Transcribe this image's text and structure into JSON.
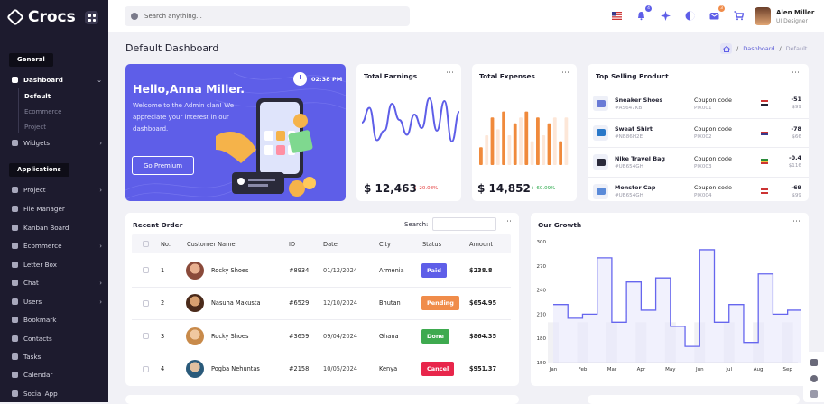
{
  "app": {
    "name": "Crocs"
  },
  "sidebar": {
    "general_label": "General",
    "applications_label": "Applications",
    "dashboard": "Dashboard",
    "dashboard_subs": [
      "Default",
      "Ecommerce",
      "Project"
    ],
    "widgets": "Widgets",
    "apps": [
      "Project",
      "File Manager",
      "Kanban Board",
      "Ecommerce",
      "Letter Box",
      "Chat",
      "Users",
      "Bookmark",
      "Contacts",
      "Tasks",
      "Calendar",
      "Social App"
    ]
  },
  "topbar": {
    "search_placeholder": "Search anything...",
    "notifications_count": "4",
    "cart_badge": "3",
    "user_name": "Alen Miller",
    "user_role": "UI Designer",
    "accent": "#5e5ee8"
  },
  "page": {
    "title": "Default Dashboard",
    "breadcrumb": [
      "Dashboard",
      "Default"
    ]
  },
  "hello": {
    "title": "Hello,Anna Miller.",
    "message": "Welcome to the Admin clan! We appreciate your interest in our dashboard.",
    "button": "Go Premium",
    "time": "02:38 PM"
  },
  "earnings": {
    "title": "Total Earnings",
    "amount": "$ 12,463",
    "delta": "+ 20.08%",
    "delta_color": "#e33b3b",
    "sparkline": [
      44,
      55,
      31,
      38,
      58,
      46,
      35,
      50,
      40,
      62,
      38,
      60,
      30,
      52
    ]
  },
  "expenses": {
    "title": "Total Expenses",
    "amount": "$ 14,852",
    "delta": "+ 60.09%",
    "delta_color": "#2aa84a",
    "bars": [
      3,
      5,
      8,
      6,
      9,
      5,
      7,
      8,
      9,
      4,
      8,
      5,
      7,
      8,
      4,
      8
    ]
  },
  "top_products": {
    "title": "Top Selling Product",
    "coupon_label": "Coupon code",
    "items": [
      {
        "name": "Sneaker Shoes",
        "sku": "#AS647KB",
        "coupon": "PIX001",
        "price": "-51",
        "was": "$99"
      },
      {
        "name": "Sweat Shirt",
        "sku": "#NB86H2E",
        "coupon": "PIX002",
        "price": "-78",
        "was": "$66"
      },
      {
        "name": "Nike Travel Bag",
        "sku": "#UB654GH",
        "coupon": "PIX003",
        "price": "-0.4",
        "was": "$116"
      },
      {
        "name": "Monster Cap",
        "sku": "#UB654GH",
        "coupon": "PIX004",
        "price": "-69",
        "was": "$99"
      }
    ]
  },
  "recent_order": {
    "title": "Recent Order",
    "search_label": "Search:",
    "columns": [
      "No.",
      "Customer Name",
      "ID",
      "Date",
      "City",
      "Status",
      "Amount"
    ],
    "rows": [
      {
        "no": "1",
        "name": "Rocky Shoes",
        "id": "#8934",
        "date": "01/12/2024",
        "city": "Armenia",
        "status": "Paid",
        "status_color": "#5e5ee8",
        "amount": "$238.8"
      },
      {
        "no": "2",
        "name": "Nasuha Makusta",
        "id": "#6529",
        "date": "12/10/2024",
        "city": "Bhutan",
        "status": "Pending",
        "status_color": "#f08c4a",
        "amount": "$654.95"
      },
      {
        "no": "3",
        "name": "Rocky Shoes",
        "id": "#3659",
        "date": "09/04/2024",
        "city": "Ghana",
        "status": "Done",
        "status_color": "#3eaa4f",
        "amount": "$864.35"
      },
      {
        "no": "4",
        "name": "Pogba Nehuntas",
        "id": "#2158",
        "date": "10/05/2024",
        "city": "Kenya",
        "status": "Cancel",
        "status_color": "#e8264b",
        "amount": "$951.37"
      }
    ]
  },
  "growth": {
    "title": "Our Growth",
    "chart_data": {
      "type": "line",
      "step": true,
      "categories": [
        "Jan",
        "Feb",
        "Mar",
        "Apr",
        "May",
        "Jun",
        "Jul",
        "Aug",
        "Sep"
      ],
      "x": [
        0,
        0.5,
        1,
        1.5,
        2,
        2.5,
        3,
        3.5,
        4,
        4.5,
        5,
        5.5,
        6,
        6.5,
        7,
        7.5,
        8,
        8.5,
        9
      ],
      "values": [
        222,
        205,
        210,
        280,
        200,
        250,
        215,
        255,
        195,
        170,
        290,
        200,
        222,
        175,
        260,
        210,
        215,
        200,
        225
      ],
      "ylim": [
        150,
        300
      ],
      "yticks": [
        150,
        180,
        210,
        240,
        270,
        300
      ],
      "color": "#6666ee"
    }
  }
}
